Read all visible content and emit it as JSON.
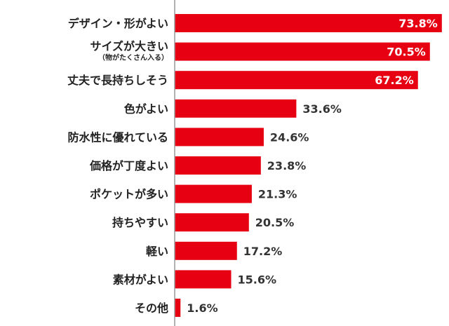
{
  "chart_data": {
    "type": "bar",
    "orientation": "horizontal",
    "categories": [
      "デザイン・形がよい",
      "サイズが大きい",
      "丈夫で長持ちしそう",
      "色がよい",
      "防水性に優れている",
      "価格が丁度よい",
      "ポケットが多い",
      "持ちやすい",
      "軽い",
      "素材がよい",
      "その他"
    ],
    "category_sublabels": [
      "",
      "（物がたくさん入る）",
      "",
      "",
      "",
      "",
      "",
      "",
      "",
      "",
      ""
    ],
    "values": [
      73.8,
      70.5,
      67.2,
      33.6,
      24.6,
      23.8,
      21.3,
      20.5,
      17.2,
      15.6,
      1.6
    ],
    "value_labels": [
      "73.8%",
      "70.5%",
      "67.2%",
      "33.6%",
      "24.6%",
      "23.8%",
      "21.3%",
      "20.5%",
      "17.2%",
      "15.6%",
      "1.6%"
    ],
    "unit": "%",
    "xlim": [
      0,
      100
    ],
    "bar_color": "#e60012",
    "axis_color": "#999999",
    "grid": false,
    "legend": "none",
    "title": "",
    "xlabel": "",
    "ylabel": ""
  }
}
